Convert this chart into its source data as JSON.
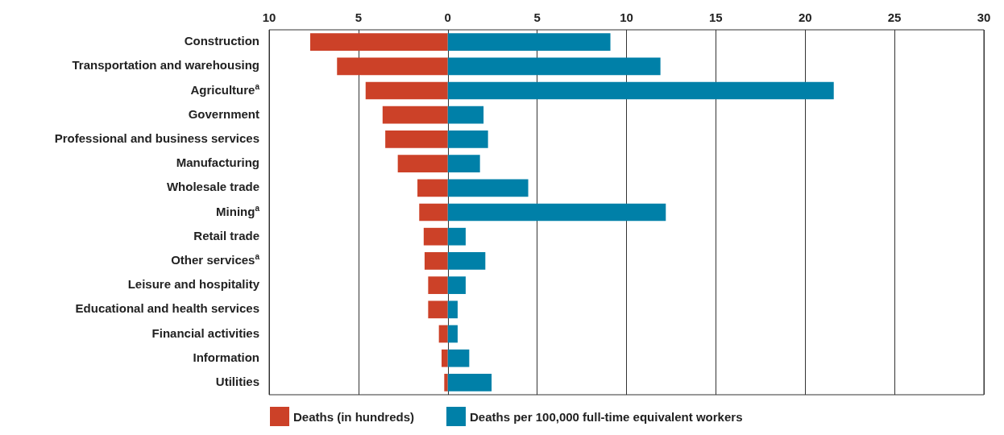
{
  "chart_data": {
    "type": "bar",
    "orientation": "horizontal",
    "categories": [
      "Construction",
      "Transportation and warehousing",
      "Agriculture$^{a}$",
      "Government",
      "Professional and business services",
      "Manufacturing",
      "Wholesale trade",
      "Mining$^{a}$",
      "Retail trade",
      "Other services$^{a}$",
      "Leisure and hospitality",
      "Educational and health services",
      "Financial activities",
      "Information",
      "Utilities"
    ],
    "series": [
      {
        "name": "Deaths (in hundreds)",
        "color": "#cc4128",
        "values": [
          -7.7,
          -6.2,
          -4.6,
          -3.65,
          -3.5,
          -2.8,
          -1.7,
          -1.6,
          -1.35,
          -1.3,
          -1.1,
          -1.1,
          -0.5,
          -0.35,
          -0.2
        ]
      },
      {
        "name": "Deaths per 100,000 full-time equivalent workers",
        "color": "#0080a8",
        "values": [
          9.1,
          11.9,
          21.6,
          2.0,
          2.25,
          1.8,
          4.5,
          12.2,
          1.0,
          2.1,
          1.0,
          0.55,
          0.55,
          1.2,
          2.45
        ]
      }
    ],
    "xlim": [
      -10,
      30
    ],
    "xticks": [
      {
        "value": -10,
        "label": "10"
      },
      {
        "value": -5,
        "label": "5"
      },
      0,
      5,
      10,
      15,
      20,
      25,
      30
    ],
    "grid": "x",
    "legend": "bottom",
    "stacked": true
  }
}
